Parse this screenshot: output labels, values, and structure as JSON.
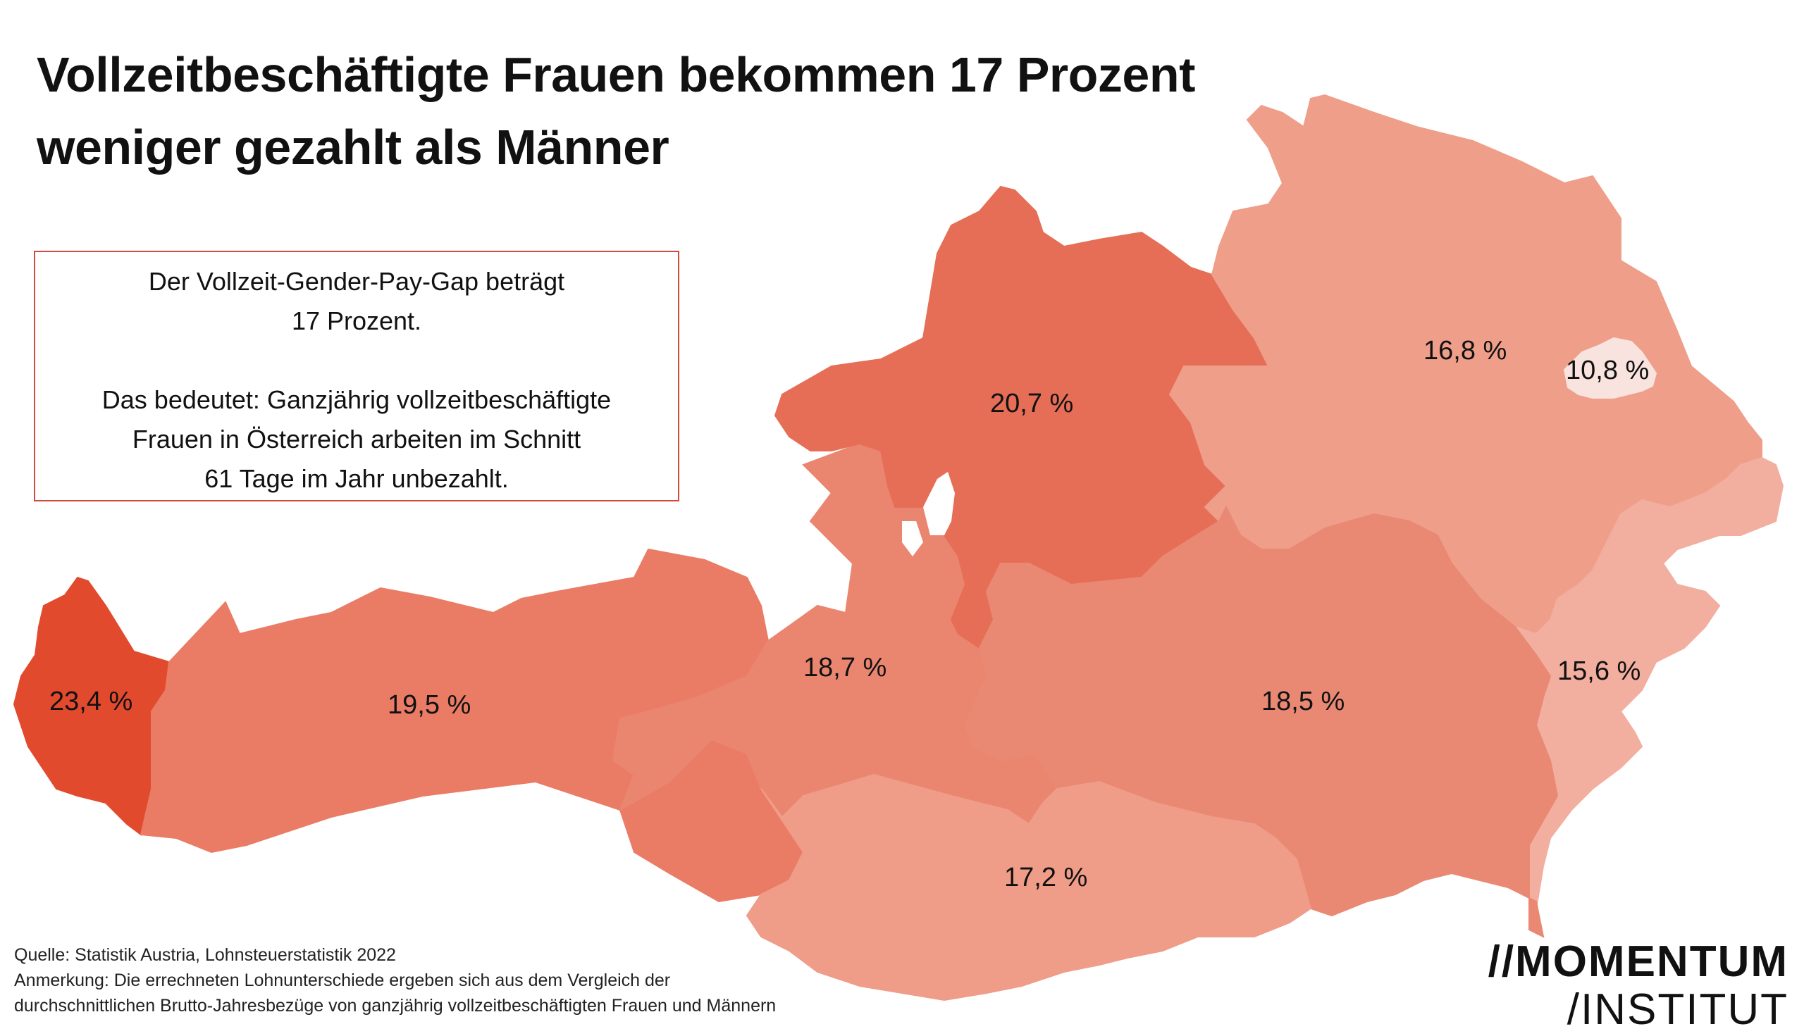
{
  "title": {
    "line1": "Vollzeitbeschäftigte Frauen bekommen 17 Prozent",
    "line2": "weniger gezahlt als Männer"
  },
  "infobox": {
    "line1": "Der Vollzeit-Gender-Pay-Gap beträgt",
    "line2": "17 Prozent.",
    "line3": "Das bedeutet: Ganzjährig vollzeitbeschäftigte",
    "line4": "Frauen in Österreich arbeiten im Schnitt",
    "line5": "61 Tage im Jahr unbezahlt."
  },
  "regions": [
    {
      "name": "Vorarlberg",
      "label": "23,4 %",
      "color": "#e24a2e"
    },
    {
      "name": "Tirol",
      "label": "19,5 %",
      "color": "#ea7c66"
    },
    {
      "name": "Salzburg",
      "label": "18,7 %",
      "color": "#ea8670"
    },
    {
      "name": "Oberösterreich",
      "label": "20,7 %",
      "color": "#e76e56"
    },
    {
      "name": "Niederösterreich",
      "label": "16,8 %",
      "color": "#ef9e8a"
    },
    {
      "name": "Wien",
      "label": "10,8 %",
      "color": "#f9e3de"
    },
    {
      "name": "Burgenland",
      "label": "15,6 %",
      "color": "#f2ae9e"
    },
    {
      "name": "Steiermark",
      "label": "18,5 %",
      "color": "#ea8973"
    },
    {
      "name": "Kärnten",
      "label": "17,2 %",
      "color": "#ef9c88"
    }
  ],
  "footer": {
    "source": "Quelle: Statistik Austria, Lohnsteuerstatistik 2022",
    "note1": "Anmerkung: Die errechneten Lohnunterschiede ergeben sich aus dem Vergleich der",
    "note2": "durchschnittlichen Brutto-Jahresbezüge von ganzjährig vollzeitbeschäftigten Frauen und Männern"
  },
  "logo": {
    "line1": "MOMENTUM",
    "line1_prefix": "//",
    "line2": "/INSTITUT"
  }
}
